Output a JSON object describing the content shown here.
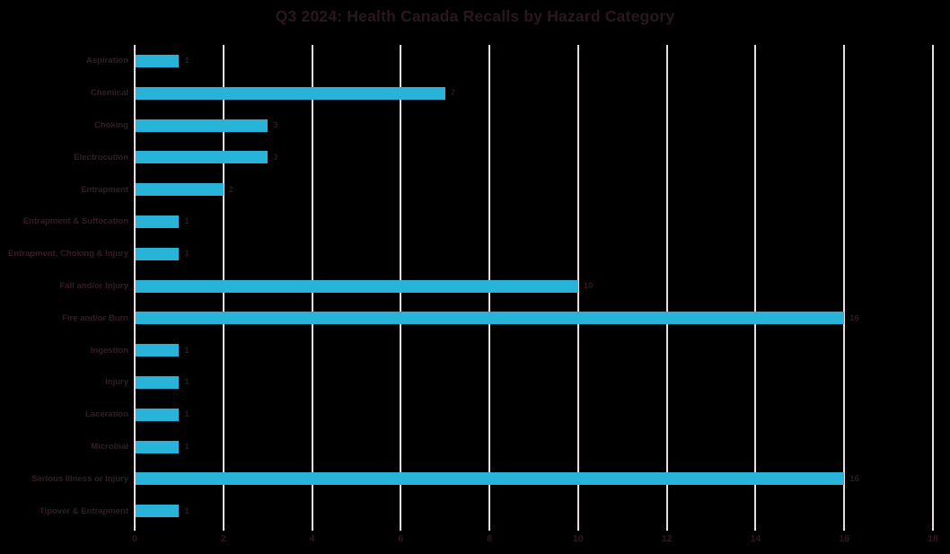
{
  "title": "Q3 2024: Health Canada Recalls by Hazard Category",
  "colors": {
    "background": "#000000",
    "bar": "#27b4d8",
    "gridline": "#ebdce0",
    "text": "#341e24",
    "title_text": "#2b171c"
  },
  "chart_data": {
    "type": "bar",
    "orientation": "horizontal",
    "title": "Q3 2024: Health Canada Recalls by Hazard Category",
    "categories": [
      "Aspiration",
      "Chemical",
      "Choking",
      "Electrocution",
      "Entrapment",
      "Entrapment & Suffocation",
      "Entrapment, Choking & Injury",
      "Fall and/or Injury",
      "Fire and/or Burn",
      "Ingestion",
      "Injury",
      "Laceration",
      "Microbial",
      "Serious Illness or Injury",
      "Tipover & Entrapment"
    ],
    "values": [
      1,
      7,
      3,
      3,
      2,
      1,
      1,
      10,
      16,
      1,
      1,
      1,
      1,
      16,
      1
    ],
    "data_labels": [
      "1",
      "7",
      "3",
      "3",
      "2",
      "1",
      "1",
      "10",
      "16",
      "1",
      "1",
      "1",
      "1",
      "16",
      "1"
    ],
    "xlabel": "",
    "ylabel": "",
    "xlim": [
      0,
      18
    ],
    "x_ticks": [
      0,
      2,
      4,
      6,
      8,
      10,
      12,
      14,
      16,
      18
    ],
    "grid": true,
    "legend": false
  }
}
